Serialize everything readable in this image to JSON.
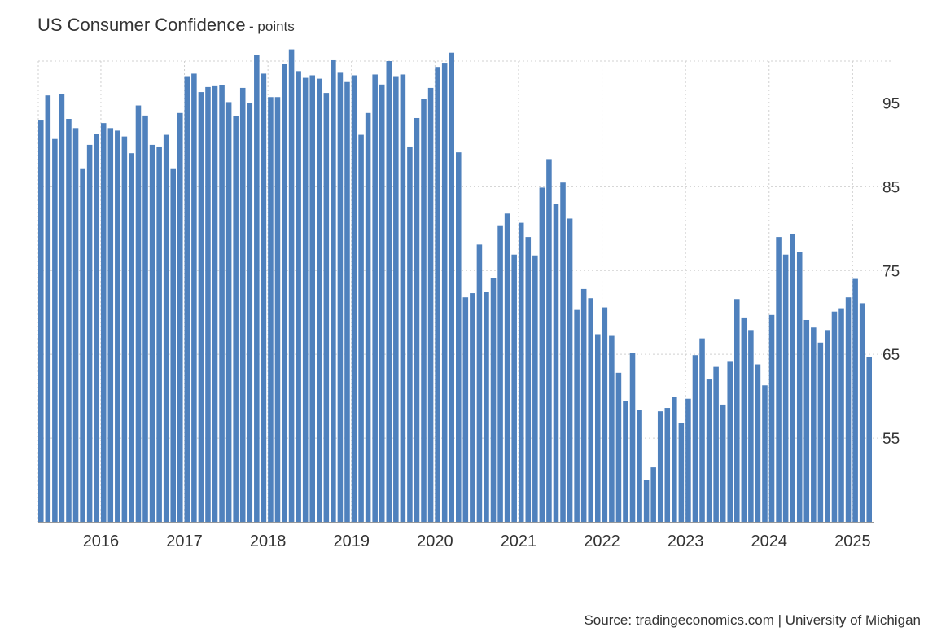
{
  "title": "US Consumer Confidence",
  "subtitle": "- points",
  "source": "Source: tradingeconomics.com | University of Michigan",
  "colors": {
    "bar": "#4f81bd",
    "grid": "#d0d0d0",
    "text": "#333333"
  },
  "chart_data": {
    "type": "bar",
    "title": "US Consumer Confidence",
    "unit": "points",
    "x_range": [
      "2015-04",
      "2025-03"
    ],
    "ylim": [
      45,
      100
    ],
    "y_ticks": [
      55,
      65,
      75,
      85,
      95
    ],
    "x_tick_labels": [
      "2016",
      "2017",
      "2018",
      "2019",
      "2020",
      "2021",
      "2022",
      "2023",
      "2024",
      "2025"
    ],
    "grid": true,
    "series": [
      {
        "values": [
          93.0,
          95.9,
          90.7,
          96.1,
          93.1,
          92.0,
          87.2,
          90.0,
          91.3,
          92.6,
          92.0,
          91.7,
          91.0,
          89.0,
          94.7,
          93.5,
          90.0,
          89.8,
          91.2,
          87.2,
          93.8,
          98.2,
          98.5,
          96.3,
          96.9,
          97.0,
          97.1,
          95.1,
          93.4,
          96.8,
          95.0,
          100.7,
          98.5,
          95.7,
          95.7,
          99.7,
          101.4,
          98.8,
          98.0,
          98.3,
          97.9,
          96.2,
          100.1,
          98.6,
          97.5,
          98.3,
          91.2,
          93.8,
          98.4,
          97.2,
          100.0,
          98.2,
          98.4,
          89.8,
          93.2,
          95.5,
          96.8,
          99.3,
          99.8,
          101.0,
          89.1,
          71.8,
          72.3,
          78.1,
          72.5,
          74.1,
          80.4,
          81.8,
          76.9,
          80.7,
          79.0,
          76.8,
          84.9,
          88.3,
          82.9,
          85.5,
          81.2,
          70.3,
          72.8,
          71.7,
          67.4,
          70.6,
          67.2,
          62.8,
          59.4,
          65.2,
          58.4,
          50.0,
          51.5,
          58.2,
          58.6,
          59.9,
          56.8,
          59.7,
          64.9,
          66.9,
          62.0,
          63.5,
          59.0,
          64.2,
          71.6,
          69.4,
          67.9,
          63.8,
          61.3,
          69.7,
          79.0,
          76.9,
          79.4,
          77.2,
          69.1,
          68.2,
          66.4,
          67.9,
          70.1,
          70.5,
          71.8,
          74.0,
          71.1,
          64.7
        ]
      }
    ]
  }
}
